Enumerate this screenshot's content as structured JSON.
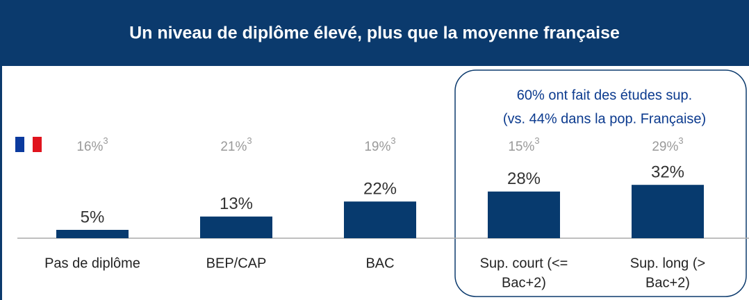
{
  "chart_data": {
    "type": "bar",
    "title": "Un niveau de diplôme élevé, plus que la moyenne française",
    "categories": [
      [
        "Pas de diplôme"
      ],
      [
        "BEP/CAP"
      ],
      [
        "BAC"
      ],
      [
        "Sup. court (<=",
        "Bac+2)"
      ],
      [
        "Sup. long (>",
        "Bac+2)"
      ]
    ],
    "values": [
      5,
      13,
      22,
      28,
      32
    ],
    "value_labels": [
      "5%",
      "13%",
      "22%",
      "28%",
      "32%"
    ],
    "color": "#073a6e",
    "comparison": {
      "values": [
        16,
        21,
        19,
        15,
        29
      ],
      "value_labels": [
        "16%",
        "21%",
        "19%",
        "15%",
        "29%"
      ],
      "footnote": "3"
    },
    "annotation": [
      "60% ont fait des études sup.",
      "(vs. 44% dans la pop. Française)"
    ]
  }
}
